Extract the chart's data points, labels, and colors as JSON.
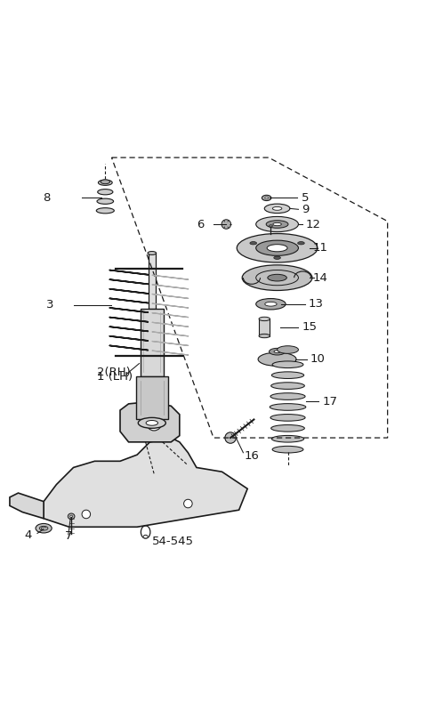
{
  "bg_color": "#ffffff",
  "line_color": "#1a1a1a",
  "label_color": "#1a1a1a",
  "fig_width": 4.8,
  "fig_height": 7.98,
  "dpi": 100
}
